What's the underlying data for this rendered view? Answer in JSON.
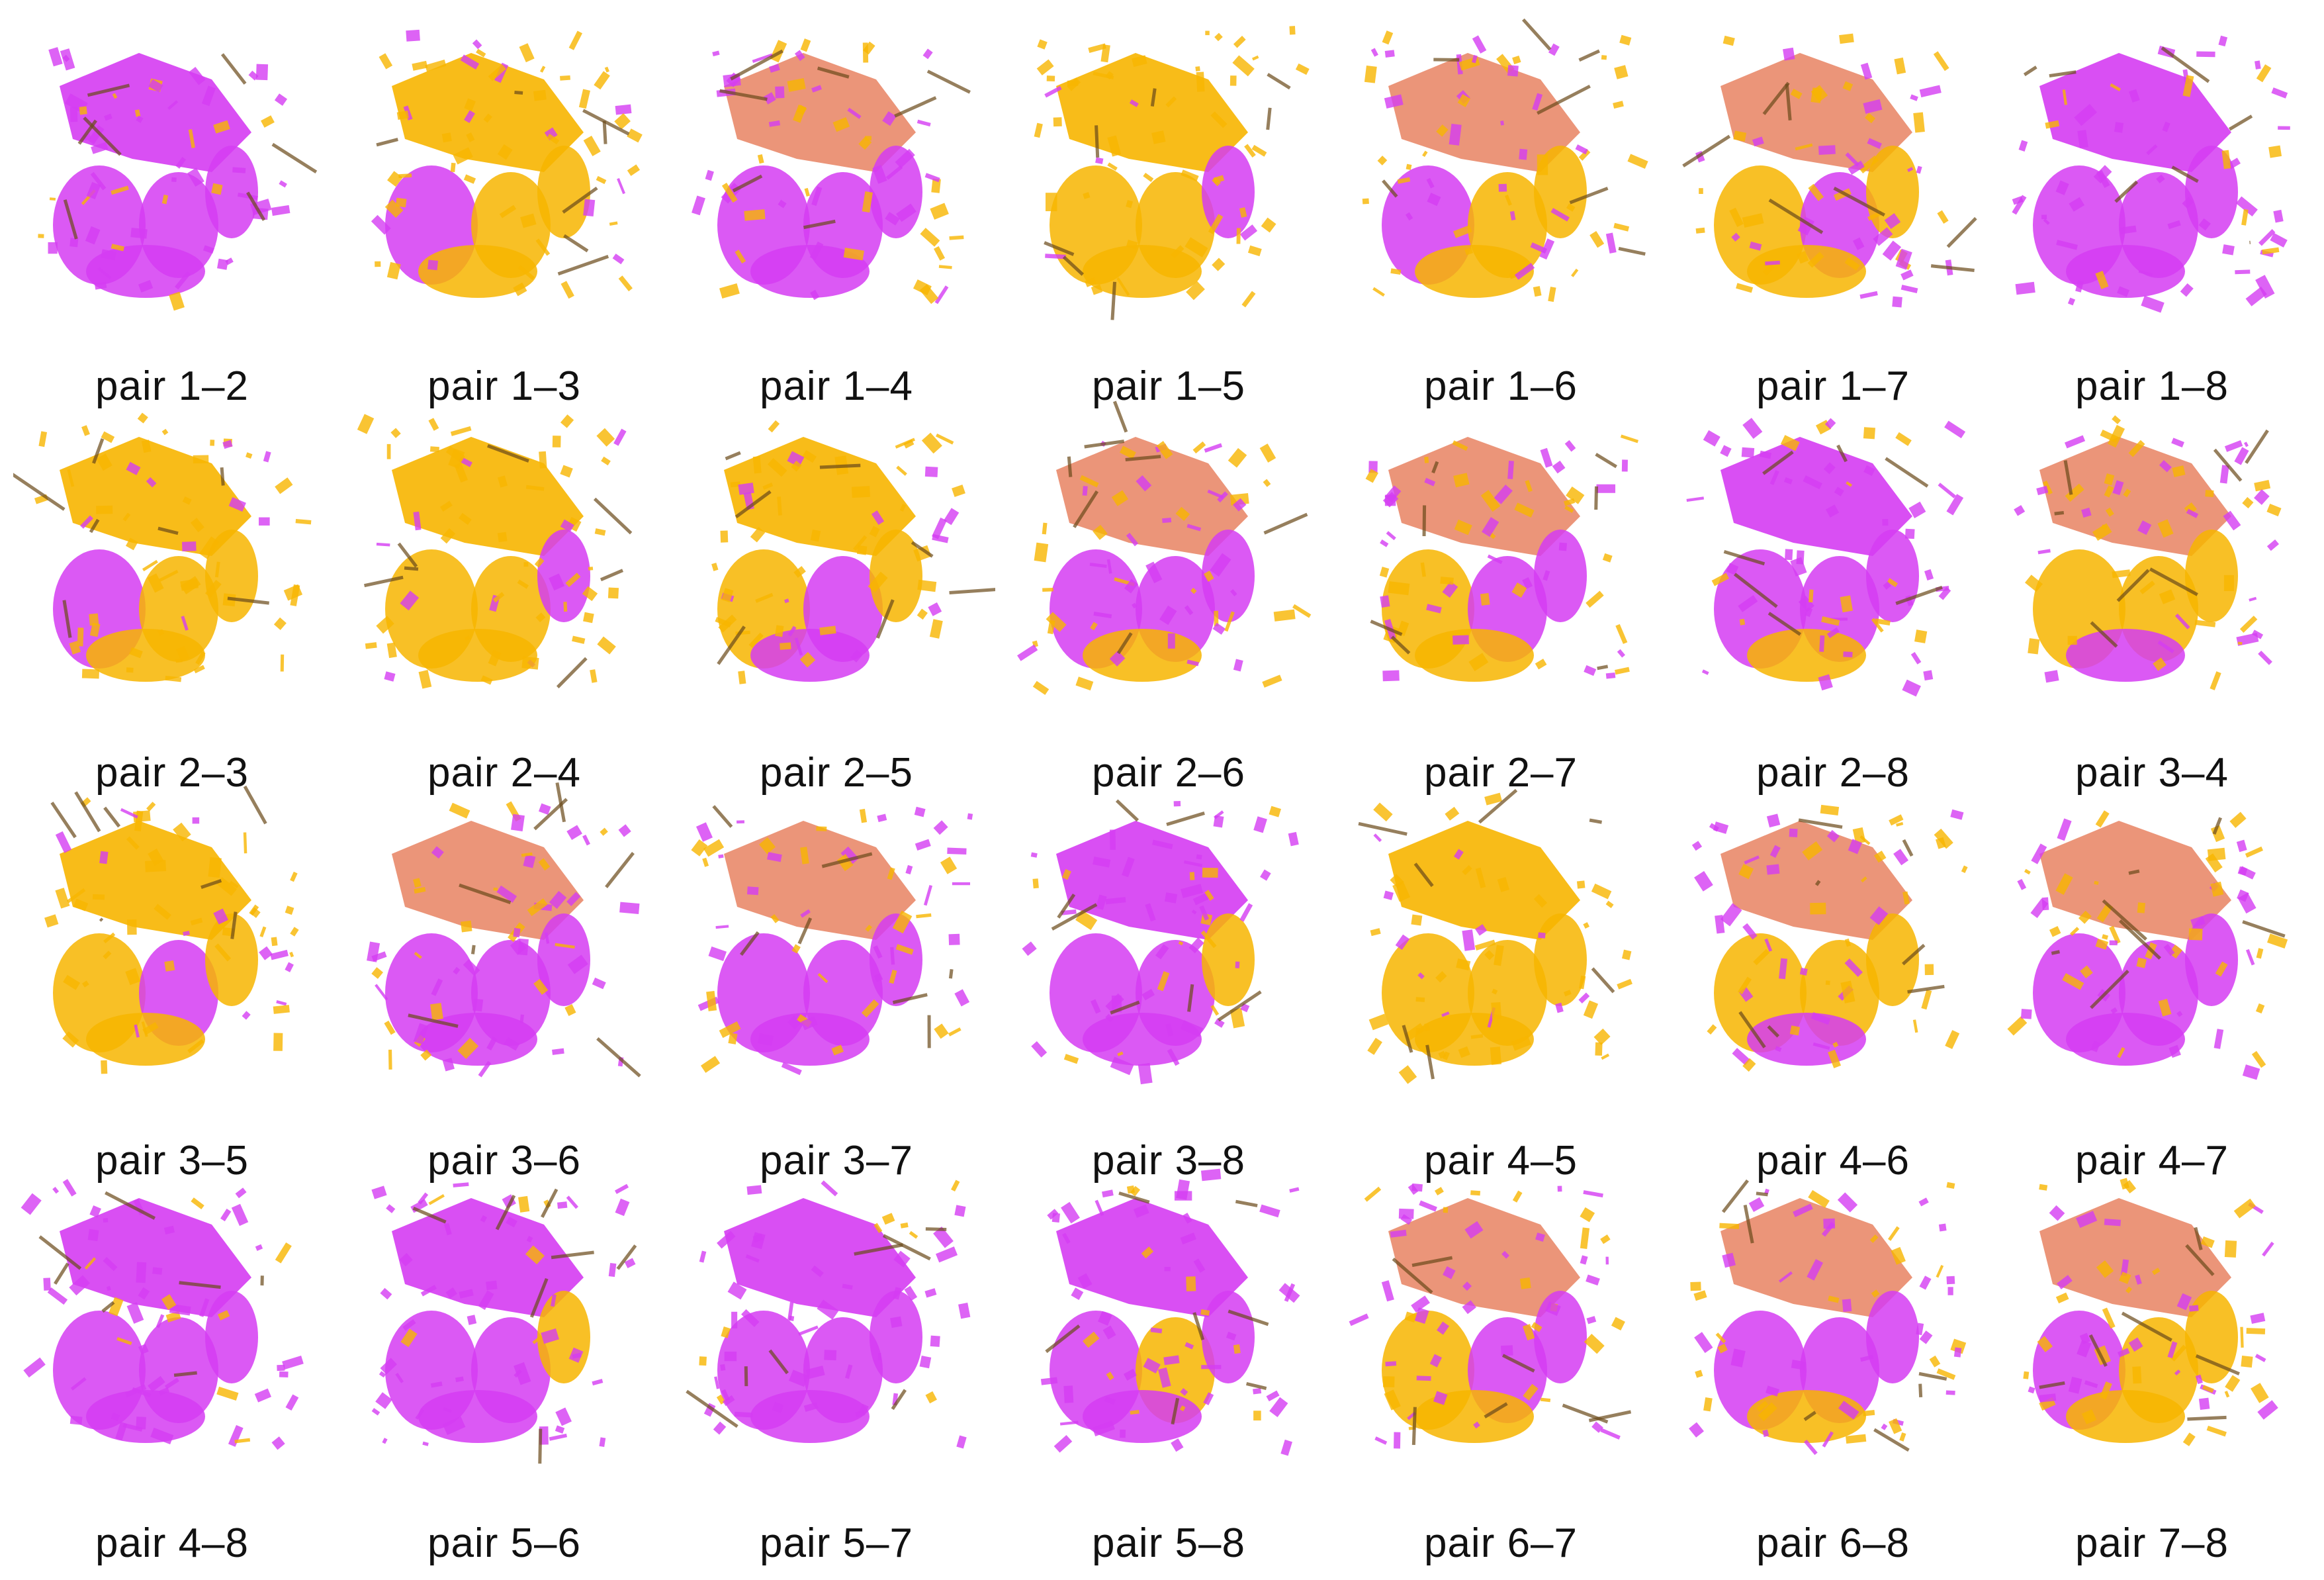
{
  "figure": {
    "colors": {
      "source": "#d53cf2",
      "target": "#f7b500",
      "blend": "#e98a6a",
      "edge": "#6b4a1a"
    },
    "panels": [
      {
        "label": "pair 1–2",
        "dominant": "source"
      },
      {
        "label": "pair 1–3",
        "dominant": "target"
      },
      {
        "label": "pair 1–4",
        "dominant": "mixed"
      },
      {
        "label": "pair 1–5",
        "dominant": "target"
      },
      {
        "label": "pair 1–6",
        "dominant": "mixed"
      },
      {
        "label": "pair 1–7",
        "dominant": "mixed"
      },
      {
        "label": "pair 1–8",
        "dominant": "source"
      },
      {
        "label": "pair 2–3",
        "dominant": "target"
      },
      {
        "label": "pair 2–4",
        "dominant": "target"
      },
      {
        "label": "pair 2–5",
        "dominant": "target"
      },
      {
        "label": "pair 2–6",
        "dominant": "mixed"
      },
      {
        "label": "pair 2–7",
        "dominant": "mixed"
      },
      {
        "label": "pair 2–8",
        "dominant": "source"
      },
      {
        "label": "pair 3–4",
        "dominant": "mixed"
      },
      {
        "label": "pair 3–5",
        "dominant": "target"
      },
      {
        "label": "pair 3–6",
        "dominant": "mixed"
      },
      {
        "label": "pair 3–7",
        "dominant": "mixed"
      },
      {
        "label": "pair 3–8",
        "dominant": "source"
      },
      {
        "label": "pair 4–5",
        "dominant": "target"
      },
      {
        "label": "pair 4–6",
        "dominant": "mixed"
      },
      {
        "label": "pair 4–7",
        "dominant": "mixed"
      },
      {
        "label": "pair 4–8",
        "dominant": "source"
      },
      {
        "label": "pair 5–6",
        "dominant": "source"
      },
      {
        "label": "pair 5–7",
        "dominant": "source"
      },
      {
        "label": "pair 5–8",
        "dominant": "source"
      },
      {
        "label": "pair 6–7",
        "dominant": "mixed"
      },
      {
        "label": "pair 6–8",
        "dominant": "mixed"
      },
      {
        "label": "pair 7–8",
        "dominant": "mixed"
      }
    ]
  }
}
